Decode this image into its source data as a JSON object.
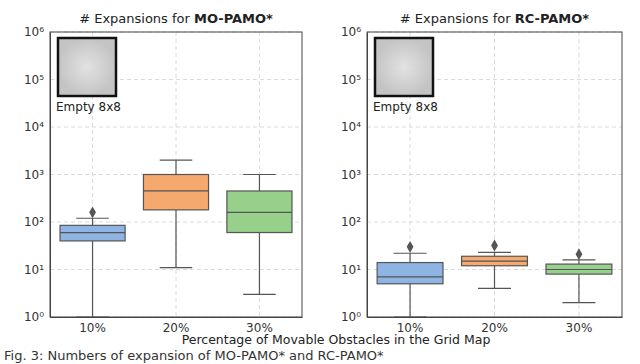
{
  "chart_data": [
    {
      "type": "box",
      "title": "# Expansions for MO-PAMO*",
      "annotation": "Empty 8x8",
      "x_label": "Percentage of Movable Obstacles in the Grid Map",
      "caption": "Fig. 3: Numbers of expansion of MO-PAMO* and RC-PAMO*",
      "categories": [
        "10%",
        "20%",
        "30%"
      ],
      "min": [
        1,
        11,
        3
      ],
      "q1": [
        40,
        180,
        60
      ],
      "median": [
        60,
        450,
        160
      ],
      "q3": [
        85,
        1000,
        450
      ],
      "max": [
        120,
        2000,
        1000
      ],
      "outliers": [
        [
          160
        ],
        [],
        []
      ],
      "colors": [
        "#8db4e2",
        "#f5a96e",
        "#97d08b"
      ],
      "log": "y",
      "grid": true,
      "ylim": [
        1,
        1000000
      ],
      "yticks": [
        {
          "value": 1,
          "label": "10⁰"
        },
        {
          "value": 10,
          "label": "10¹"
        },
        {
          "value": 100,
          "label": "10²"
        },
        {
          "value": 1000,
          "label": "10³"
        },
        {
          "value": 10000,
          "label": "10⁴"
        },
        {
          "value": 100000,
          "label": "10⁵"
        },
        {
          "value": 1000000,
          "label": "10⁶"
        }
      ]
    },
    {
      "type": "box",
      "title": "# Expansions for RC-PAMO*",
      "annotation": "Empty 8x8",
      "categories": [
        "10%",
        "20%",
        "30%"
      ],
      "min": [
        1,
        4,
        2
      ],
      "q1": [
        5,
        12,
        8
      ],
      "median": [
        7,
        15,
        10
      ],
      "q3": [
        14,
        19,
        13
      ],
      "max": [
        22,
        23,
        16
      ],
      "outliers": [
        [
          30
        ],
        [
          32
        ],
        [
          21
        ]
      ],
      "colors": [
        "#8db4e2",
        "#f5a96e",
        "#97d08b"
      ],
      "log": "y",
      "grid": true,
      "ylim": [
        1,
        1000000
      ],
      "yticks": [
        {
          "value": 1,
          "label": "10⁰"
        },
        {
          "value": 10,
          "label": "10¹"
        },
        {
          "value": 100,
          "label": "10²"
        },
        {
          "value": 1000,
          "label": "10³"
        },
        {
          "value": 10000,
          "label": "10⁴"
        },
        {
          "value": 100000,
          "label": "10⁵"
        },
        {
          "value": 1000000,
          "label": "10⁶"
        }
      ]
    }
  ]
}
